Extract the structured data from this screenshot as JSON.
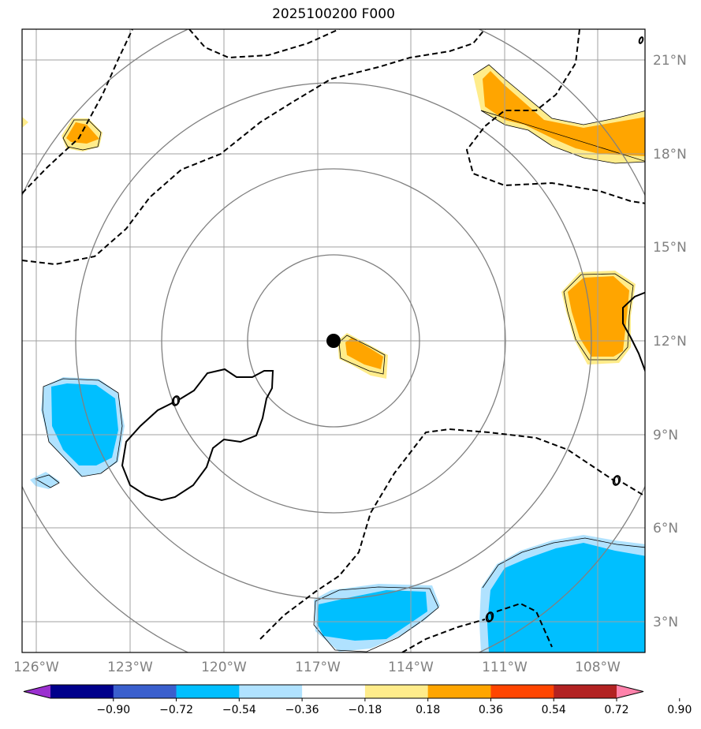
{
  "title": "2025100200 F000",
  "chart_data": {
    "type": "map",
    "projection": "lat-lon",
    "lon_range": [
      -127,
      -107
    ],
    "lat_range": [
      2,
      22
    ],
    "lon_ticks": [
      "126°W",
      "123°W",
      "120°W",
      "117°W",
      "114°W",
      "111°W",
      "108°W"
    ],
    "lat_ticks": [
      "21°N",
      "18°N",
      "15°N",
      "12°N",
      "9°N",
      "6°N",
      "3°N"
    ],
    "center_marker": {
      "lon": -116.5,
      "lat": 12.0
    },
    "range_rings_deg": [
      2.7,
      5.5,
      8.2,
      11.0
    ],
    "contour_label": "0",
    "colorbar": {
      "ticks": [
        "−0.90",
        "−0.72",
        "−0.54",
        "−0.36",
        "−0.18",
        "0.18",
        "0.36",
        "0.54",
        "0.72",
        "0.90"
      ],
      "colors": [
        "#9b30d0",
        "#00008b",
        "#3a5fcd",
        "#00bfff",
        "#b0e2ff",
        "#ffffff",
        "#ffec8b",
        "#ffa500",
        "#ff4500",
        "#b22222",
        "#ff82ab"
      ]
    }
  }
}
